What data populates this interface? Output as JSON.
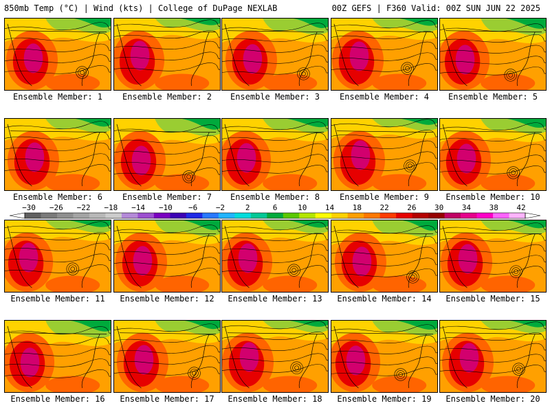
{
  "header": {
    "left": "850mb Temp (°C) | Wind (kts) | College of DuPage NEXLAB",
    "right": "00Z GEFS | F360 Valid: 00Z SUN JUN 22 2025"
  },
  "panels": [
    {
      "label": "Ensemble Member: 1",
      "member": 1,
      "low": true
    },
    {
      "label": "Ensemble Member: 2",
      "member": 2,
      "low": false
    },
    {
      "label": "Ensemble Member: 3",
      "member": 3,
      "low": true
    },
    {
      "label": "Ensemble Member: 4",
      "member": 4,
      "low": true
    },
    {
      "label": "Ensemble Member: 5",
      "member": 5,
      "low": true
    },
    {
      "label": "Ensemble Member: 6",
      "member": 6,
      "low": false
    },
    {
      "label": "Ensemble Member: 7",
      "member": 7,
      "low": true
    },
    {
      "label": "Ensemble Member: 8",
      "member": 8,
      "low": false
    },
    {
      "label": "Ensemble Member: 9",
      "member": 9,
      "low": true
    },
    {
      "label": "Ensemble Member: 10",
      "member": 10,
      "low": true
    },
    {
      "label": "Ensemble Member: 11",
      "member": 11,
      "low": true
    },
    {
      "label": "Ensemble Member: 12",
      "member": 12,
      "low": false
    },
    {
      "label": "Ensemble Member: 13",
      "member": 13,
      "low": true
    },
    {
      "label": "Ensemble Member: 14",
      "member": 14,
      "low": true
    },
    {
      "label": "Ensemble Member: 15",
      "member": 15,
      "low": true
    },
    {
      "label": "Ensemble Member: 16",
      "member": 16,
      "low": false
    },
    {
      "label": "Ensemble Member: 17",
      "member": 17,
      "low": true
    },
    {
      "label": "Ensemble Member: 18",
      "member": 18,
      "low": true
    },
    {
      "label": "Ensemble Member: 19",
      "member": 19,
      "low": true
    },
    {
      "label": "Ensemble Member: 20",
      "member": 20,
      "low": true
    }
  ],
  "colorbar": {
    "unit": "°C",
    "ticks": [
      -30,
      -26,
      -22,
      -18,
      -14,
      -10,
      -6,
      -2,
      2,
      6,
      10,
      14,
      18,
      22,
      26,
      30,
      34,
      38,
      42
    ],
    "tick_labels": [
      "−30",
      "−26",
      "−22",
      "−18",
      "−14",
      "−10",
      "−6",
      "−2",
      "2",
      "6",
      "10",
      "14",
      "18",
      "22",
      "26",
      "30",
      "34",
      "38",
      "42"
    ],
    "colors": [
      "#606060",
      "#7a7a7a",
      "#8f8f8f",
      "#a4a4a4",
      "#b8b8b8",
      "#cccccc",
      "#b48ad8",
      "#9c4fd0",
      "#7a00c0",
      "#3c00b4",
      "#1e28e6",
      "#2878ff",
      "#20b4ff",
      "#00dcdc",
      "#00c896",
      "#00aa3c",
      "#5ac800",
      "#b4e600",
      "#ffff00",
      "#ffd200",
      "#ffa000",
      "#ff7800",
      "#ff3c00",
      "#e60000",
      "#b40000",
      "#960000",
      "#c00064",
      "#e6008c",
      "#ff00c8",
      "#ff64ff",
      "#ffb4ff"
    ]
  },
  "palette": {
    "warm_core": "#d2006e",
    "hot": "#e60000",
    "warm": "#ff6400",
    "mild": "#ffa000",
    "cool": "#ffd200",
    "cooler": "#9acd32",
    "cold": "#00aa3c",
    "coldest": "#00c8b4",
    "contour": "#000000"
  }
}
